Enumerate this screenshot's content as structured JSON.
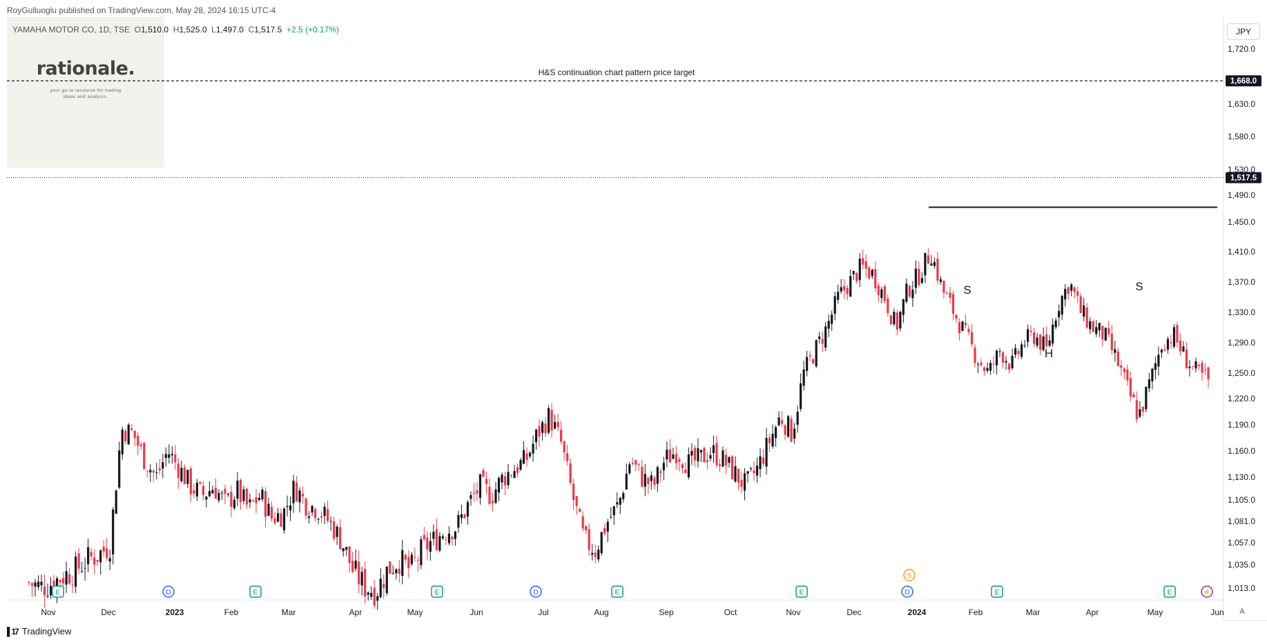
{
  "header": {
    "publisher": "RoyGulluoglu published on TradingView.com, May 28, 2024 16:15 UTC-4",
    "symbol": "YAMAHA MOTOR CO, 1D, TSE",
    "open_label": "O",
    "open": "1,510.0",
    "high_label": "H",
    "high": "1,525.0",
    "low_label": "L",
    "low": "1,497.0",
    "close_label": "C",
    "close": "1,517.5",
    "change": "+2.5 (+0.17%)"
  },
  "logo": {
    "text": "rationale.",
    "tagline_1": "your go-to resource for trading",
    "tagline_2": "ideas and analysis."
  },
  "currency": "JPY",
  "auto_label": "A",
  "brand": "TradingView",
  "chart_data": {
    "type": "candlestick",
    "y_axis_ticks": [
      "1,720.0",
      "1,630.0",
      "1,580.0",
      "1,530.0",
      "1,490.0",
      "1,450.0",
      "1,410.0",
      "1,370.0",
      "1,330.0",
      "1,290.0",
      "1,250.0",
      "1,220.0",
      "1,190.0",
      "1,160.0",
      "1,130.0",
      "1,105.0",
      "1,081.0",
      "1,057.0",
      "1,035.0",
      "1,013.0"
    ],
    "x_axis_ticks": [
      "Nov",
      "Dec",
      "2023",
      "Feb",
      "Mar",
      "Apr",
      "May",
      "Jun",
      "Jul",
      "Aug",
      "Sep",
      "Oct",
      "Nov",
      "Dec",
      "2024",
      "Feb",
      "Mar",
      "Apr",
      "May",
      "Jun"
    ],
    "x_range": [
      "2022-10-20",
      "2024-06-05"
    ],
    "last_price": "1,517.5",
    "target_price": "1,668.0",
    "neckline": 1472,
    "annotations": {
      "target_text": "H&S continuation chart pattern price target",
      "left_shoulder": "S",
      "head": "H",
      "right_shoulder": "S"
    },
    "closes": [
      [
        1.0,
        1018
      ],
      [
        0.99,
        1014
      ],
      [
        1.01,
        1018
      ],
      [
        1.0,
        1025
      ],
      [
        0.99,
        1030
      ],
      [
        0.98,
        1040
      ],
      [
        0.97,
        1045
      ],
      [
        0.96,
        1055
      ],
      [
        0.94,
        1185
      ],
      [
        0.93,
        1180
      ],
      [
        0.92,
        1150
      ],
      [
        0.91,
        1130
      ],
      [
        0.9,
        1160
      ],
      [
        0.89,
        1140
      ],
      [
        0.88,
        1120
      ],
      [
        0.87,
        1110
      ],
      [
        0.86,
        1120
      ],
      [
        0.85,
        1100
      ],
      [
        0.84,
        1115
      ],
      [
        0.83,
        1095
      ],
      [
        0.82,
        1110
      ],
      [
        0.81,
        1085
      ],
      [
        0.8,
        1090
      ],
      [
        0.79,
        1120
      ],
      [
        0.78,
        1100
      ],
      [
        0.77,
        1095
      ],
      [
        0.76,
        1080
      ],
      [
        0.75,
        1060
      ],
      [
        0.74,
        1030
      ],
      [
        0.73,
        1015
      ],
      [
        0.72,
        1010
      ],
      [
        0.71,
        1030
      ],
      [
        0.7,
        1040
      ],
      [
        0.69,
        1030
      ],
      [
        0.68,
        1050
      ],
      [
        0.67,
        1060
      ],
      [
        0.66,
        1070
      ],
      [
        0.65,
        1075
      ],
      [
        0.64,
        1100
      ],
      [
        0.63,
        1120
      ],
      [
        0.62,
        1110
      ],
      [
        0.61,
        1130
      ],
      [
        0.6,
        1140
      ],
      [
        0.59,
        1150
      ],
      [
        0.58,
        1180
      ],
      [
        0.57,
        1200
      ],
      [
        0.56,
        1170
      ],
      [
        0.55,
        1110
      ],
      [
        0.54,
        1060
      ],
      [
        0.53,
        1050
      ],
      [
        0.52,
        1080
      ],
      [
        0.51,
        1100
      ],
      [
        0.5,
        1150
      ],
      [
        0.49,
        1130
      ],
      [
        0.48,
        1120
      ],
      [
        0.47,
        1150
      ],
      [
        0.46,
        1160
      ],
      [
        0.45,
        1145
      ],
      [
        0.44,
        1150
      ],
      [
        0.43,
        1160
      ],
      [
        0.42,
        1150
      ],
      [
        0.41,
        1135
      ],
      [
        0.4,
        1120
      ],
      [
        0.39,
        1140
      ],
      [
        0.38,
        1170
      ],
      [
        0.37,
        1200
      ],
      [
        0.36,
        1180
      ],
      [
        0.35,
        1250
      ],
      [
        0.34,
        1280
      ],
      [
        0.33,
        1310
      ],
      [
        0.32,
        1350
      ],
      [
        0.31,
        1370
      ],
      [
        0.3,
        1390
      ],
      [
        0.29,
        1380
      ],
      [
        0.28,
        1350
      ],
      [
        0.27,
        1310
      ],
      [
        0.26,
        1360
      ],
      [
        0.25,
        1380
      ],
      [
        0.24,
        1410
      ],
      [
        0.23,
        1360
      ],
      [
        0.22,
        1330
      ],
      [
        0.21,
        1300
      ],
      [
        0.2,
        1270
      ],
      [
        0.19,
        1250
      ],
      [
        0.18,
        1280
      ],
      [
        0.17,
        1260
      ],
      [
        0.16,
        1290
      ],
      [
        0.15,
        1300
      ],
      [
        0.14,
        1280
      ],
      [
        0.13,
        1340
      ],
      [
        0.12,
        1370
      ],
      [
        0.11,
        1330
      ],
      [
        0.1,
        1310
      ],
      [
        0.09,
        1300
      ],
      [
        0.08,
        1270
      ],
      [
        0.07,
        1230
      ],
      [
        0.06,
        1200
      ],
      [
        0.05,
        1240
      ],
      [
        0.04,
        1290
      ],
      [
        0.03,
        1300
      ],
      [
        0.02,
        1270
      ],
      [
        0.01,
        1250
      ],
      [
        0.0,
        1240
      ]
    ]
  },
  "event_markers": [
    "E",
    "D",
    "E",
    "E",
    "D",
    "E",
    "E",
    "D",
    "S",
    "E",
    "E"
  ]
}
